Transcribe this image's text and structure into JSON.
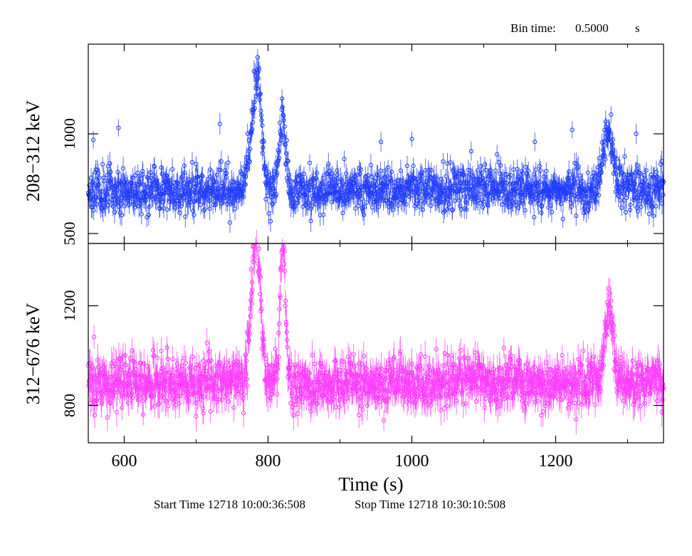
{
  "header": {
    "bin_label": "Bin time:",
    "bin_value": "0.5000",
    "bin_unit": "s"
  },
  "footer": {
    "start_label": "Start Time 12718 10:00:36:508",
    "stop_label": "Stop Time 12718 10:30:10:508"
  },
  "colors": {
    "top": "#1f3cff",
    "bottom": "#ff3cff",
    "axis": "#000000"
  },
  "chart_data": [
    {
      "type": "scatter",
      "title": "",
      "xlabel": "Time (s)",
      "ylabel": "208−312 keV",
      "xlim": [
        550,
        1350
      ],
      "ylim": [
        450,
        1450
      ],
      "x_ticks": [
        600,
        800,
        1000,
        1200
      ],
      "y_ticks": [
        500,
        1000
      ],
      "y_tick_labels": [
        "500",
        "1000"
      ],
      "baseline": 720,
      "noise": 55,
      "error_bar": 45,
      "series_name": "208-312 keV",
      "peaks": [
        {
          "x": 786,
          "y": 1200,
          "w": 5
        },
        {
          "x": 777,
          "y": 930,
          "w": 7
        },
        {
          "x": 820,
          "y": 1110,
          "w": 4
        },
        {
          "x": 1273,
          "y": 1000,
          "w": 7
        }
      ],
      "spikes": [
        {
          "x": 784,
          "y": 1320
        },
        {
          "x": 592,
          "y": 1030
        },
        {
          "x": 733,
          "y": 1050
        },
        {
          "x": 1223,
          "y": 1020
        },
        {
          "x": 1312,
          "y": 1000
        },
        {
          "x": 557,
          "y": 970
        },
        {
          "x": 957,
          "y": 960
        },
        {
          "x": 1171,
          "y": 960
        }
      ]
    },
    {
      "type": "scatter",
      "title": "",
      "xlabel": "Time (s)",
      "ylabel": "312−676 keV",
      "xlim": [
        550,
        1350
      ],
      "ylim": [
        650,
        1450
      ],
      "x_ticks": [
        600,
        800,
        1000,
        1200
      ],
      "y_ticks": [
        800,
        1200
      ],
      "y_tick_labels": [
        "800",
        "1200"
      ],
      "baseline": 890,
      "noise": 50,
      "error_bar": 50,
      "series_name": "312-676 keV",
      "peaks": [
        {
          "x": 785,
          "y": 1380,
          "w": 5
        },
        {
          "x": 778,
          "y": 1130,
          "w": 5
        },
        {
          "x": 820,
          "y": 1310,
          "w": 3
        },
        {
          "x": 822,
          "y": 1080,
          "w": 5
        },
        {
          "x": 1273,
          "y": 1180,
          "w": 6
        }
      ],
      "spikes": [
        {
          "x": 558,
          "y": 1075
        },
        {
          "x": 1180,
          "y": 760
        },
        {
          "x": 710,
          "y": 770
        }
      ]
    }
  ]
}
